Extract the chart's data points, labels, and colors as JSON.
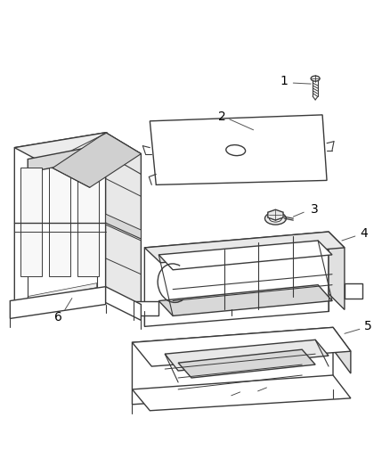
{
  "background_color": "#ffffff",
  "line_color": "#3a3a3a",
  "label_color": "#000000",
  "label_fontsize": 10,
  "line_width": 1.0,
  "fig_width": 4.38,
  "fig_height": 5.33,
  "dpi": 100
}
